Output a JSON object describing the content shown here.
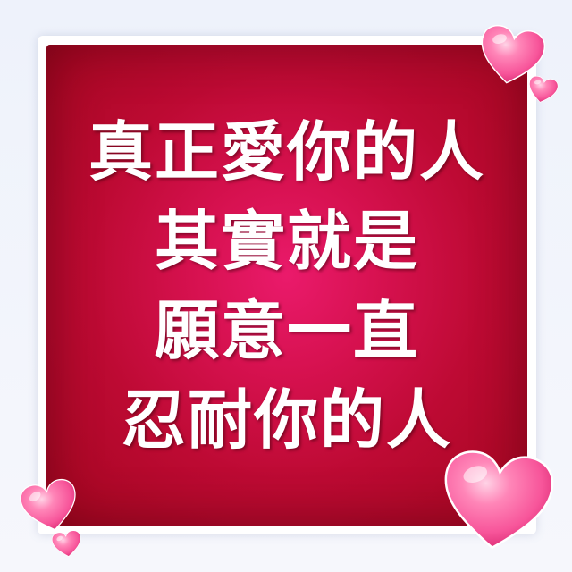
{
  "quote": {
    "lines": [
      "真正愛你的人",
      "其實就是",
      "願意一直",
      "忍耐你的人"
    ]
  },
  "colors": {
    "panel_center": "#ea1a6b",
    "panel_edge": "#a3061f",
    "text": "#ffffff",
    "heart_light": "#ffc2dc",
    "heart_main": "#f7559a",
    "heart_dark": "#d8266f"
  },
  "decorations": {
    "icons": [
      "heart-icon",
      "heart-icon",
      "heart-icon",
      "heart-icon",
      "heart-icon"
    ]
  }
}
